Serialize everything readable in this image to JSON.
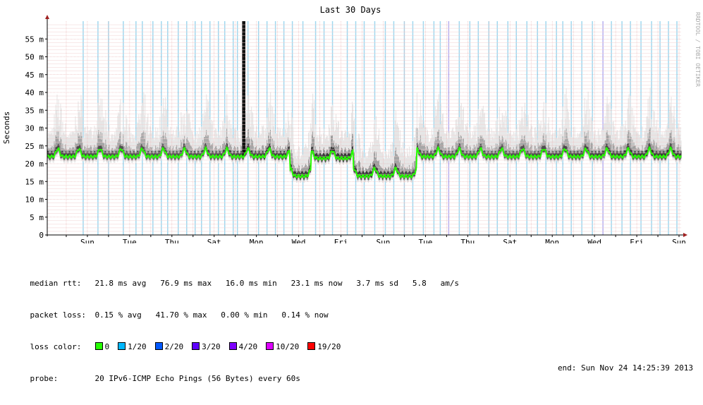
{
  "chart_data": {
    "type": "line",
    "title": "Last 30 Days",
    "ylabel": "Seconds",
    "watermark": "RRDTOOL / TOBI OETIKER",
    "ylim": [
      0,
      60
    ],
    "yticks": [
      {
        "v": 0,
        "label": "0"
      },
      {
        "v": 5,
        "label": "5 m"
      },
      {
        "v": 10,
        "label": "10 m"
      },
      {
        "v": 15,
        "label": "15 m"
      },
      {
        "v": 20,
        "label": "20 m"
      },
      {
        "v": 25,
        "label": "25 m"
      },
      {
        "v": 30,
        "label": "30 m"
      },
      {
        "v": 35,
        "label": "35 m"
      },
      {
        "v": 40,
        "label": "40 m"
      },
      {
        "v": 45,
        "label": "45 m"
      },
      {
        "v": 50,
        "label": "50 m"
      },
      {
        "v": 55,
        "label": "55 m"
      }
    ],
    "xlim_days": [
      0,
      30
    ],
    "xticks": [
      {
        "day": 1.9,
        "label": "Sun"
      },
      {
        "day": 3.9,
        "label": "Tue"
      },
      {
        "day": 5.9,
        "label": "Thu"
      },
      {
        "day": 7.9,
        "label": "Sat"
      },
      {
        "day": 9.9,
        "label": "Mon"
      },
      {
        "day": 11.9,
        "label": "Wed"
      },
      {
        "day": 13.9,
        "label": "Fri"
      },
      {
        "day": 15.9,
        "label": "Sun"
      },
      {
        "day": 17.9,
        "label": "Tue"
      },
      {
        "day": 19.9,
        "label": "Thu"
      },
      {
        "day": 21.9,
        "label": "Sat"
      },
      {
        "day": 23.9,
        "label": "Mon"
      },
      {
        "day": 25.9,
        "label": "Wed"
      },
      {
        "day": 27.9,
        "label": "Fri"
      },
      {
        "day": 29.9,
        "label": "Sun"
      }
    ],
    "median_segments": [
      {
        "from": 0.0,
        "to": 11.5,
        "base": 22.0
      },
      {
        "from": 11.5,
        "to": 12.5,
        "base": 16.5
      },
      {
        "from": 12.5,
        "to": 14.5,
        "base": 21.5
      },
      {
        "from": 14.5,
        "to": 17.5,
        "base": 16.5
      },
      {
        "from": 17.5,
        "to": 30.0,
        "base": 22.0
      }
    ],
    "spike": {
      "day": 9.3,
      "max": 60
    },
    "loss_lines": [
      {
        "day": 1.7,
        "color": "#a0d8ef"
      },
      {
        "day": 2.4,
        "color": "#a0d8ef"
      },
      {
        "day": 2.9,
        "color": "#a0d8ef"
      },
      {
        "day": 3.6,
        "color": "#a0d8ef"
      },
      {
        "day": 4.2,
        "color": "#a0d8ef"
      },
      {
        "day": 4.5,
        "color": "#a0d8ef"
      },
      {
        "day": 5.0,
        "color": "#a0d8ef"
      },
      {
        "day": 5.4,
        "color": "#a0d8ef"
      },
      {
        "day": 5.7,
        "color": "#a0d8ef"
      },
      {
        "day": 6.2,
        "color": "#a0d8ef"
      },
      {
        "day": 6.6,
        "color": "#a0d8ef"
      },
      {
        "day": 7.0,
        "color": "#a0d8ef"
      },
      {
        "day": 7.3,
        "color": "#a0d8ef"
      },
      {
        "day": 7.7,
        "color": "#a0d8ef"
      },
      {
        "day": 8.1,
        "color": "#a0d8ef"
      },
      {
        "day": 8.4,
        "color": "#a0d8ef"
      },
      {
        "day": 8.8,
        "color": "#a0d8ef"
      },
      {
        "day": 9.0,
        "color": "#a0d8ef"
      },
      {
        "day": 9.5,
        "color": "#a0d8ef"
      },
      {
        "day": 10.0,
        "color": "#a0d8ef"
      },
      {
        "day": 10.4,
        "color": "#a0d8ef"
      },
      {
        "day": 10.8,
        "color": "#a0d8ef"
      },
      {
        "day": 11.2,
        "color": "#a0d8ef"
      },
      {
        "day": 11.6,
        "color": "#a0d8ef"
      },
      {
        "day": 12.1,
        "color": "#a0d8ef"
      },
      {
        "day": 12.7,
        "color": "#a0d8ef"
      },
      {
        "day": 13.1,
        "color": "#a0d8ef"
      },
      {
        "day": 13.5,
        "color": "#a0d8ef"
      },
      {
        "day": 14.2,
        "color": "#a0d8ef"
      },
      {
        "day": 14.6,
        "color": "#a0d8ef"
      },
      {
        "day": 15.0,
        "color": "#a0d8ef"
      },
      {
        "day": 15.5,
        "color": "#a0d8ef"
      },
      {
        "day": 16.0,
        "color": "#a0d8ef"
      },
      {
        "day": 16.4,
        "color": "#a0d8ef"
      },
      {
        "day": 16.9,
        "color": "#a0d8ef"
      },
      {
        "day": 17.3,
        "color": "#a0d8ef"
      },
      {
        "day": 17.8,
        "color": "#a0d8ef"
      },
      {
        "day": 18.3,
        "color": "#a0d8ef"
      },
      {
        "day": 18.6,
        "color": "#a0d8ef"
      },
      {
        "day": 19.0,
        "color": "#b8b0f0"
      },
      {
        "day": 19.5,
        "color": "#a0d8ef"
      },
      {
        "day": 20.0,
        "color": "#a0d8ef"
      },
      {
        "day": 20.4,
        "color": "#a0d8ef"
      },
      {
        "day": 20.9,
        "color": "#a0d8ef"
      },
      {
        "day": 21.3,
        "color": "#a0d8ef"
      },
      {
        "day": 21.8,
        "color": "#a0d8ef"
      },
      {
        "day": 22.2,
        "color": "#a0d8ef"
      },
      {
        "day": 22.7,
        "color": "#a0d8ef"
      },
      {
        "day": 23.2,
        "color": "#a0d8ef"
      },
      {
        "day": 23.6,
        "color": "#a0d8ef"
      },
      {
        "day": 24.1,
        "color": "#a0d8ef"
      },
      {
        "day": 24.4,
        "color": "#a0d8ef"
      },
      {
        "day": 24.8,
        "color": "#a0d8ef"
      },
      {
        "day": 25.3,
        "color": "#a0d8ef"
      },
      {
        "day": 25.8,
        "color": "#a0d8ef"
      },
      {
        "day": 26.3,
        "color": "#b8b0f0"
      },
      {
        "day": 26.7,
        "color": "#a0d8ef"
      },
      {
        "day": 27.2,
        "color": "#a0d8ef"
      },
      {
        "day": 27.6,
        "color": "#a0d8ef"
      },
      {
        "day": 28.1,
        "color": "#a0d8ef"
      },
      {
        "day": 28.6,
        "color": "#a0d8ef"
      },
      {
        "day": 29.0,
        "color": "#a0d8ef"
      },
      {
        "day": 29.4,
        "color": "#a0d8ef"
      },
      {
        "day": 29.8,
        "color": "#a0d8ef"
      }
    ]
  },
  "legend": {
    "median_label": "median rtt:",
    "median_values": "21.8 ms avg   76.9 ms max   16.0 ms min   23.1 ms now   3.7 ms sd   5.8   am/s",
    "loss_label": "packet loss:",
    "loss_values": "0.15 % avg   41.70 % max   0.00 % min   0.14 % now",
    "color_label": "loss color:",
    "colors": [
      {
        "label": "0",
        "color": "#26ff00"
      },
      {
        "label": "1/20",
        "color": "#00b8ff"
      },
      {
        "label": "2/20",
        "color": "#0059ff"
      },
      {
        "label": "3/20",
        "color": "#5e00ff"
      },
      {
        "label": "4/20",
        "color": "#7e00ff"
      },
      {
        "label": "10/20",
        "color": "#dd00ff"
      },
      {
        "label": "19/20",
        "color": "#ff0000"
      }
    ],
    "probe_label": "probe:",
    "probe_value": "20 IPv6-ICMP Echo Pings (56 Bytes) every 60s",
    "end_text": "end: Sun Nov 24 14:25:39 2013"
  }
}
